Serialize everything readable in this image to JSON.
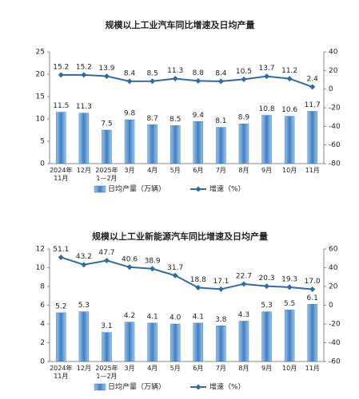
{
  "chart_data": [
    {
      "type": "combo",
      "title": "规模以上工业汽车同比增速及日均产量",
      "categories": [
        "2024年\n11月",
        "12月",
        "2025年\n1—2月",
        "3月",
        "4月",
        "5月",
        "6月",
        "7月",
        "8月",
        "9月",
        "10月",
        "11月"
      ],
      "series": [
        {
          "name": "日均产量（万辆）",
          "type": "bar",
          "color": "#3f7fc4",
          "values": [
            11.5,
            11.3,
            7.5,
            9.8,
            8.7,
            8.5,
            9.4,
            8.1,
            8.9,
            10.8,
            10.6,
            11.7
          ],
          "value_labels": [
            "11.5",
            "11.3",
            "7.5",
            "9.8",
            "8.7",
            "8.5",
            "9.4",
            "8.1",
            "8.9",
            "10.8",
            "10.6",
            "11.7"
          ]
        },
        {
          "name": "增速（%）",
          "type": "line",
          "axis": "y2",
          "color": "#2e6aa8",
          "values": [
            15.2,
            15.2,
            13.9,
            8.4,
            8.5,
            11.3,
            8.8,
            8.4,
            10.5,
            13.7,
            11.2,
            2.4
          ],
          "value_labels": [
            "15.2",
            "15.2",
            "13.9",
            "8.4",
            "8.5",
            "11.3",
            "8.8",
            "8.4",
            "10.5",
            "13.7",
            "11.2",
            "2.4"
          ]
        }
      ],
      "ylim": [
        0,
        25
      ],
      "yticks": [
        0,
        5,
        10,
        15,
        20,
        25
      ],
      "y2lim": [
        -80,
        40
      ],
      "y2ticks": [
        -80,
        -60,
        -40,
        -20,
        0,
        20,
        40
      ]
    },
    {
      "type": "combo",
      "title": "规模以上工业新能源汽车同比增速及日均产量",
      "categories": [
        "2024年\n11月",
        "12月",
        "2025年\n1—2月",
        "3月",
        "4月",
        "5月",
        "6月",
        "7月",
        "8月",
        "9月",
        "10月",
        "11月"
      ],
      "series": [
        {
          "name": "日均产量（万辆）",
          "type": "bar",
          "color": "#3f7fc4",
          "values": [
            5.2,
            5.3,
            3.1,
            4.2,
            4.1,
            4.0,
            4.1,
            3.8,
            4.3,
            5.3,
            5.5,
            6.1
          ],
          "value_labels": [
            "5.2",
            "5.3",
            "3.1",
            "4.2",
            "4.1",
            "4.0",
            "4.1",
            "3.8",
            "4.3",
            "5.3",
            "5.5",
            "6.1"
          ]
        },
        {
          "name": "增速（%）",
          "type": "line",
          "axis": "y2",
          "color": "#2e6aa8",
          "values": [
            51.1,
            43.2,
            47.7,
            40.6,
            38.9,
            31.7,
            18.8,
            17.1,
            22.7,
            20.3,
            19.3,
            17.0
          ],
          "value_labels": [
            "51.1",
            "43.2",
            "47.7",
            "40.6",
            "38.9",
            "31.7",
            "18.8",
            "17.1",
            "22.7",
            "20.3",
            "19.3",
            "17.0"
          ]
        }
      ],
      "ylim": [
        0,
        12
      ],
      "yticks": [
        0,
        2,
        4,
        6,
        8,
        10,
        12
      ],
      "y2lim": [
        -60,
        60
      ],
      "y2ticks": [
        -60,
        -40,
        -20,
        0,
        20,
        40,
        60
      ]
    }
  ]
}
